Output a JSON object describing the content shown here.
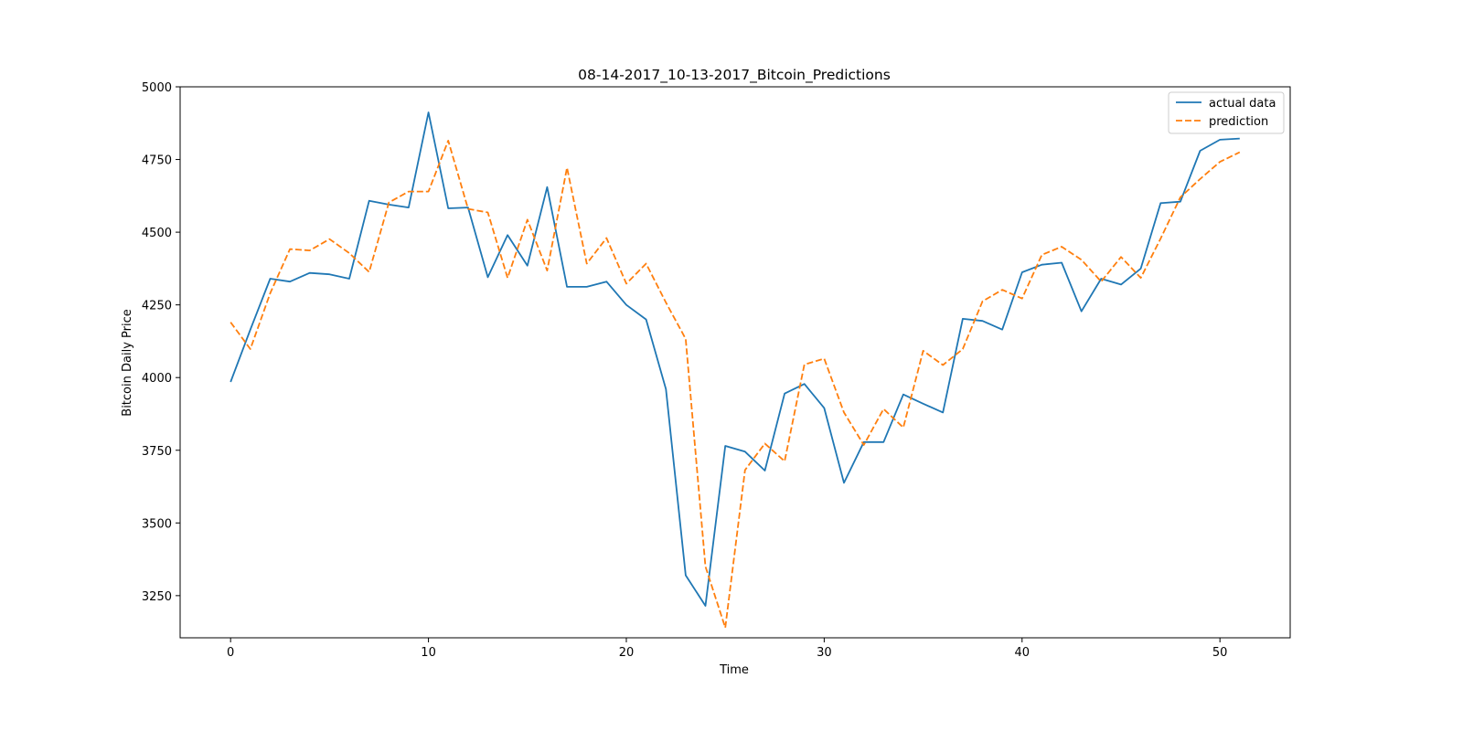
{
  "chart_data": {
    "type": "line",
    "title": "08-14-2017_10-13-2017_Bitcoin_Predictions",
    "xlabel": "Time",
    "ylabel": "Bitcoin Daily Price",
    "xlim": [
      -2.55,
      53.55
    ],
    "ylim": [
      3105,
      5000
    ],
    "x_ticks": [
      0,
      10,
      20,
      30,
      40,
      50
    ],
    "y_ticks": [
      3250,
      3500,
      3750,
      4000,
      4250,
      4500,
      4750,
      5000
    ],
    "grid": false,
    "legend_position": "top-right",
    "x": [
      0,
      1,
      2,
      3,
      4,
      5,
      6,
      7,
      8,
      9,
      10,
      11,
      12,
      13,
      14,
      15,
      16,
      17,
      18,
      19,
      20,
      21,
      22,
      23,
      24,
      25,
      26,
      27,
      28,
      29,
      30,
      31,
      32,
      33,
      34,
      35,
      36,
      37,
      38,
      39,
      40,
      41,
      42,
      43,
      44,
      45,
      46,
      47,
      48,
      49,
      50,
      51
    ],
    "series": [
      {
        "name": "actual data",
        "color": "#1f77b4",
        "style": "solid",
        "values": [
          3985,
          4165,
          4340,
          4330,
          4360,
          4355,
          4340,
          4608,
          4595,
          4585,
          4912,
          4582,
          4585,
          4345,
          4490,
          4385,
          4655,
          4312,
          4312,
          4330,
          4250,
          4200,
          3960,
          3320,
          3215,
          3765,
          3745,
          3680,
          3945,
          3978,
          3895,
          3638,
          3778,
          3778,
          3942,
          3910,
          3880,
          4202,
          4195,
          4165,
          4362,
          4388,
          4395,
          4228,
          4340,
          4320,
          4375,
          4600,
          4605,
          4780,
          4818,
          4822
        ]
      },
      {
        "name": "prediction",
        "color": "#ff7f0e",
        "style": "dashed",
        "values": [
          4190,
          4098,
          4290,
          4442,
          4437,
          4476,
          4428,
          4363,
          4602,
          4640,
          4640,
          4815,
          4580,
          4568,
          4343,
          4543,
          4368,
          4722,
          4392,
          4480,
          4323,
          4392,
          4258,
          4133,
          3350,
          3140,
          3682,
          3773,
          3712,
          4045,
          4065,
          3880,
          3768,
          3892,
          3828,
          4092,
          4043,
          4098,
          4262,
          4302,
          4272,
          4422,
          4450,
          4405,
          4330,
          4415,
          4343,
          4478,
          4620,
          4683,
          4742,
          4775
        ]
      }
    ]
  }
}
